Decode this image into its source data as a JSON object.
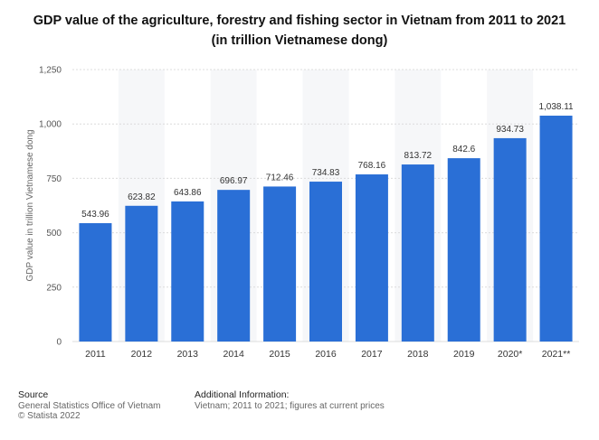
{
  "title_line1": "GDP value of the agriculture, forestry and fishing sector in Vietnam from 2011 to 2021",
  "title_line2": "(in trillion Vietnamese dong)",
  "footer": {
    "source_heading": "Source",
    "source_line1": "General Statistics Office of Vietnam",
    "source_line2": "© Statista 2022",
    "info_heading": "Additional Information:",
    "info_line1": "Vietnam; 2011 to 2021; figures at current prices"
  },
  "colors": {
    "bar": "#2a6fd6",
    "band": "#f6f7f9",
    "grid": "#dcdcdc"
  },
  "chart_data": {
    "type": "bar",
    "title": "GDP value of the agriculture, forestry and fishing sector in Vietnam from 2011 to 2021",
    "ylabel": "GDP value in trillion Vietnamese dong",
    "xlabel": "",
    "categories": [
      "2011",
      "2012",
      "2013",
      "2014",
      "2015",
      "2016",
      "2017",
      "2018",
      "2019",
      "2020*",
      "2021**"
    ],
    "values": [
      543.96,
      623.82,
      643.86,
      696.97,
      712.46,
      734.83,
      768.16,
      813.72,
      842.6,
      934.73,
      1038.11
    ],
    "value_labels": [
      "543.96",
      "623.82",
      "643.86",
      "696.97",
      "712.46",
      "734.83",
      "768.16",
      "813.72",
      "842.6",
      "934.73",
      "1,038.11"
    ],
    "ylim": [
      0,
      1250
    ],
    "yticks": [
      0,
      250,
      500,
      750,
      1000,
      1250
    ],
    "ytick_labels": [
      "0",
      "250",
      "500",
      "750",
      "1,000",
      "1,250"
    ],
    "grid": true,
    "legend": "none"
  }
}
